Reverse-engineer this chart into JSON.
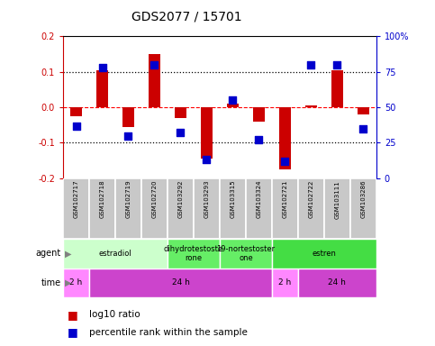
{
  "title": "GDS2077 / 15701",
  "samples": [
    "GSM102717",
    "GSM102718",
    "GSM102719",
    "GSM102720",
    "GSM103292",
    "GSM103293",
    "GSM103315",
    "GSM103324",
    "GSM102721",
    "GSM102722",
    "GSM103111",
    "GSM103286"
  ],
  "log10_ratio": [
    -0.025,
    0.105,
    -0.055,
    0.15,
    -0.03,
    -0.145,
    0.01,
    -0.04,
    -0.175,
    0.005,
    0.105,
    -0.02
  ],
  "percentile": [
    37,
    78,
    30,
    80,
    32,
    13,
    55,
    27,
    12,
    80,
    80,
    35
  ],
  "log10_ylim": [
    -0.2,
    0.2
  ],
  "yticks_left": [
    -0.2,
    -0.1,
    0.0,
    0.1,
    0.2
  ],
  "yticks_right": [
    0,
    25,
    50,
    75,
    100
  ],
  "agent_groups": [
    {
      "label": "estradiol",
      "start": 0,
      "end": 4,
      "color": "#ccffcc"
    },
    {
      "label": "dihydrotestoste\nrone",
      "start": 4,
      "end": 6,
      "color": "#66ee66"
    },
    {
      "label": "19-nortestoster\none",
      "start": 6,
      "end": 8,
      "color": "#66ee66"
    },
    {
      "label": "estren",
      "start": 8,
      "end": 12,
      "color": "#44dd44"
    }
  ],
  "time_groups": [
    {
      "label": "2 h",
      "start": 0,
      "end": 1,
      "color": "#ff88ff"
    },
    {
      "label": "24 h",
      "start": 1,
      "end": 8,
      "color": "#cc44cc"
    },
    {
      "label": "2 h",
      "start": 8,
      "end": 9,
      "color": "#ff88ff"
    },
    {
      "label": "24 h",
      "start": 9,
      "end": 12,
      "color": "#cc44cc"
    }
  ],
  "bar_color": "#cc0000",
  "dot_color": "#0000cc",
  "left_axis_color": "#cc0000",
  "right_axis_color": "#0000cc",
  "sample_bg": "#c8c8c8",
  "sample_border": "#ffffff"
}
